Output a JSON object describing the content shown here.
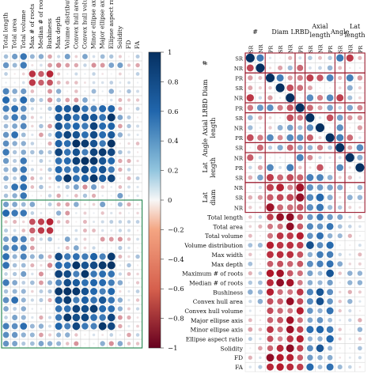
{
  "chart_data": [
    {
      "type": "heatmap",
      "title": "",
      "value_range": [
        -1,
        1
      ],
      "colorbar_ticks": [
        "1",
        "0.8",
        "0.6",
        "0.4",
        "0.2",
        "0",
        "−0.2",
        "−0.4",
        "−0.6",
        "−0.8",
        "−1"
      ],
      "colormap": {
        "negative": "#b2182b",
        "neutral": "#f7f7f7",
        "positive": "#2166ac"
      },
      "column_labels": [
        "Total length",
        "Total area",
        "Total volume",
        "Max # of roots",
        "Median # of roots",
        "Bushiness",
        "Max depth",
        "Volume distribution",
        "Convex hull area",
        "Convex hull volume",
        "Minor ellipse axis",
        "Major ellipse axis",
        "Ellipse aspect ratio",
        "Solidity",
        "FD",
        "FA"
      ],
      "matrix_note": "values estimated from circle color; rows = columns continuing below crop"
    },
    {
      "type": "heatmap",
      "value_range": [
        -1,
        1
      ],
      "column_groups": [
        "#",
        "Diam",
        "LRBD",
        "Axial length",
        "Angle",
        "Lat length"
      ],
      "column_sublabels": [
        "SR",
        "NR",
        "PR",
        "SR",
        "NR",
        "PR",
        "SR",
        "NR",
        "PR",
        "SR",
        "NR",
        "PR"
      ],
      "row_groups": [
        "#",
        "Diam",
        "LRBD",
        "Axial length",
        "Angle",
        "Lat length",
        "Lat diam"
      ],
      "row_sublabels": [
        "SR",
        "NR",
        "PR",
        "SR",
        "NR",
        "PR",
        "SR",
        "NR",
        "PR",
        "SR",
        "NR",
        "PR",
        "SR",
        "NR"
      ],
      "bottom_row_labels": [
        "Total length",
        "Total area",
        "Total volume",
        "Volume distribution",
        "Max width",
        "Max depth",
        "Maximum # of roots",
        "Median # of roots",
        "Bushiness",
        "Convex hull area",
        "Convex hull volume",
        "Major ellipse axis",
        "Minor ellipse axis",
        "Ellipse aspect ratio",
        "Solidity",
        "FD",
        "FA"
      ]
    }
  ],
  "colors": {
    "positive": "#2166ac",
    "negative": "#b2182b",
    "neutral": "#f7f7f7",
    "left_box": "#2e8b57",
    "right_box": "#9b1c2e"
  }
}
